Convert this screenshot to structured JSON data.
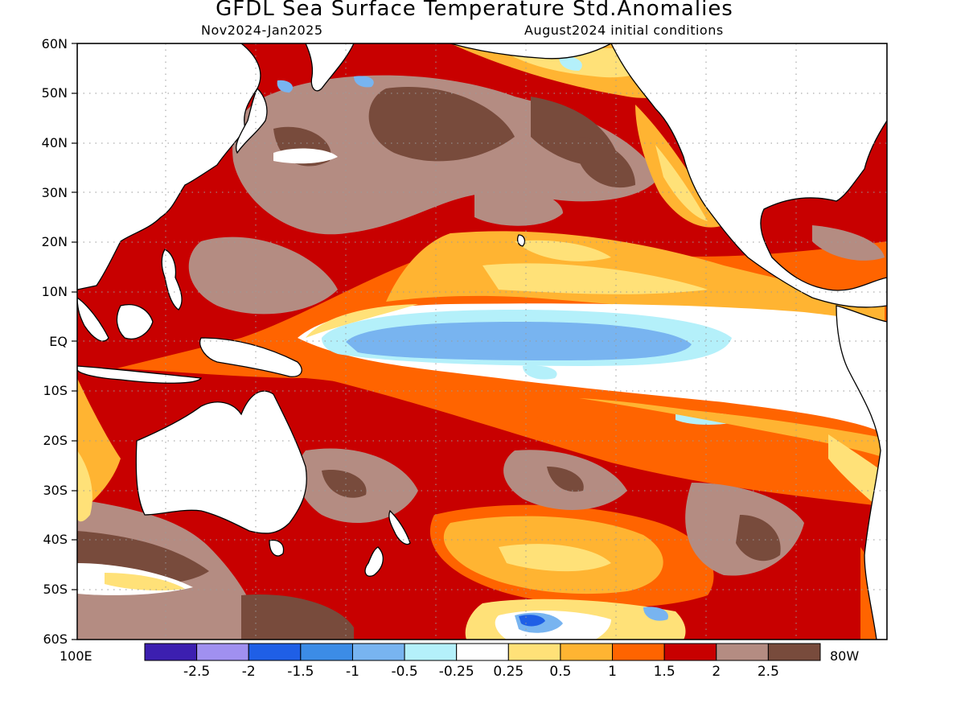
{
  "title": "GFDL Sea Surface Temperature Std.Anomalies",
  "subtitle_left": "Nov2024-Jan2025",
  "subtitle_right": "August2024 initial conditions",
  "lat_labels": [
    "60N",
    "50N",
    "40N",
    "30N",
    "20N",
    "10N",
    "EQ",
    "10S",
    "20S",
    "30S",
    "40S",
    "50S",
    "60S"
  ],
  "lon_labels": {
    "west": "100E",
    "east": "80W"
  },
  "colorbar": {
    "tick_labels": [
      "-2.5",
      "-2",
      "-1.5",
      "-1",
      "-0.5",
      "-0.25",
      "0.25",
      "0.5",
      "1",
      "1.5",
      "2",
      "2.5"
    ],
    "colors": [
      "#3c1fb0",
      "#a090f0",
      "#1f5fe6",
      "#3c8ce6",
      "#78b4f0",
      "#b4f0fa",
      "#ffffff",
      "#ffe178",
      "#ffb432",
      "#ff6400",
      "#c80000",
      "#b48c82",
      "#784b3c"
    ]
  },
  "map_data": {
    "grid": "dotted, every 10 degrees",
    "land_color": "#ffffff",
    "coastline_color": "#000000"
  }
}
